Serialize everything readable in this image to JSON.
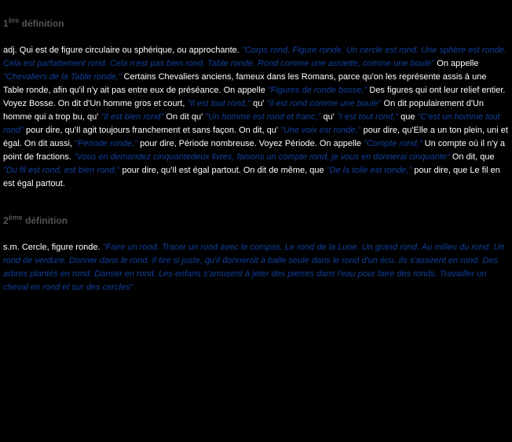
{
  "defs": [
    {
      "ord": "1",
      "ord_suffix": "ère",
      "label": "définition",
      "body_html": "<span class=\"white\">adj. Qui est de figure circulaire ou sphérique, ou approchante. </span><span class=\"blue\">\"Corps rond. Figure ronde. Un cercle est rond. Une sphère est ronde. Cela est parfaitement rond. Cela n'est pas bien rond. Table ronde. Rond comme une assiette, comme une boule\"</span><span class=\"white\"> On appelle </span><span class=\"blue\">\"Chevaliers de la Table ronde,\"</span><span class=\"white\"> Certains Chevaliers anciens, fameux dans les Romans, parce qu'on les représente assis à une Table ronde, afin qu'il n'y ait pas entre eux de préséance. On appelle </span><span class=\"blue\">\"Figures de ronde bosse,\"</span><span class=\"white\"> Des figures qui ont leur relief entier. Voyez Bosse. On dit d'Un homme gros et court, </span><span class=\"blue\">\"Il est tout rond,\"</span><span class=\"white\"> qu' </span><span class=\"blue\">\"il est rond comme une boule\"</span><span class=\"white\"> On dit populairement d'Un homme qui a trop bu, qu' </span><span class=\"blue\">\"Il est bien rond\"</span><span class=\"white\"> On dit qu' </span><span class=\"blue\">\"Un homme est rond et franc,\"</span><span class=\"white\"> qu' </span><span class=\"blue\">\"I est tout rond,\"</span><span class=\"white\"> que </span><span class=\"blue\">\"C'est un homme tout rond\"</span><span class=\"white\"> pour dire, qu'Il agit toujours franchement et sans façon. On dit, qu' </span><span class=\"blue\">\"Une voix est ronde,\"</span><span class=\"white\"> pour dire, qu'Elle a un ton plein, uni et égal. On dit aussi, </span><span class=\"blue\">\"Période ronde,\"</span><span class=\"white\"> pour dire, Période nombreuse. Voyez Période. On appelle </span><span class=\"blue\">\"Compte rond,\"</span><span class=\"white\"> Un compte où il n'y a point de fractions. </span><span class=\"blue\">\"Vous en demandez cinquantedeux livres, faisons un compte rond, je vous en donnerai cinquante\"</span><span class=\"white\"> On dit, que </span><span class=\"blue\">\"Du fil est rond, est bien rond,\"</span><span class=\"white\"> pour dire, qu'Il est égal partout. On dit de même, que </span><span class=\"blue\">\"De la toile est ronde,\"</span><span class=\"white\"> pour dire, que Le fil en est égal partout.</span>"
    },
    {
      "ord": "2",
      "ord_suffix": "ème",
      "label": "définition",
      "body_html": "<span class=\"white\">s.m. Cercle, figure ronde. </span><span class=\"blue\">\"Faire un rond. Tracer un rond avec le compas. Le rond de la Lune. Un grand rond. Au milieu du rond. Un rond de verdure. Donner dans le rond. Il tire si juste, qu'il donneroit à balle seule dans le rond d'un écu. Ils s'assirent en rond. Des arbres plantés en rond. Danser en rond. Les enfans s'amusent à jeter des pierres dans l'eau pour faire des ronds. Travailler un cheval en rond et sur des cercles\"</span>"
    }
  ]
}
